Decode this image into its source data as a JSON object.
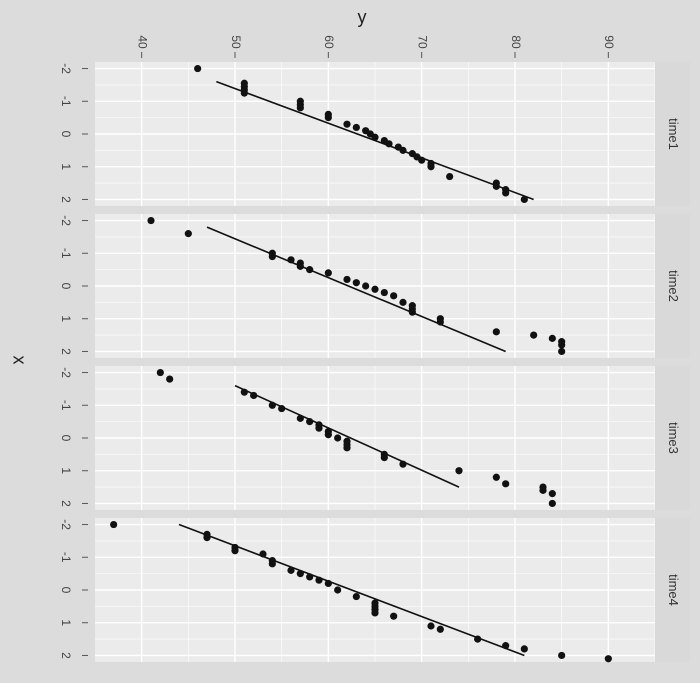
{
  "chart_data": {
    "type": "scatter",
    "orientation": "rotated-90-clockwise",
    "title": "",
    "xlabel": "x",
    "ylabel": "y",
    "x_ticks": [
      "-2",
      "-1",
      "0",
      "1",
      "2"
    ],
    "y_ticks": [
      "40",
      "50",
      "60",
      "70",
      "80",
      "90"
    ],
    "ylim": [
      35,
      95
    ],
    "xlim": [
      -2.2,
      2.2
    ],
    "grid": true,
    "panel_background": "#ebebeb",
    "strip_background": "#d9d9d9",
    "point_color": "#111111",
    "line_color": "#111111",
    "facets": [
      {
        "label": "time1",
        "fit": {
          "x": [
            -1.6,
            2.0
          ],
          "y": [
            48,
            82
          ]
        },
        "points": [
          {
            "x": -2.0,
            "y": 46
          },
          {
            "x": -1.55,
            "y": 51
          },
          {
            "x": -1.45,
            "y": 51
          },
          {
            "x": -1.35,
            "y": 51
          },
          {
            "x": -1.25,
            "y": 51
          },
          {
            "x": -1.0,
            "y": 57
          },
          {
            "x": -0.9,
            "y": 57
          },
          {
            "x": -0.8,
            "y": 57
          },
          {
            "x": -0.6,
            "y": 60
          },
          {
            "x": -0.5,
            "y": 60
          },
          {
            "x": -0.3,
            "y": 62
          },
          {
            "x": -0.2,
            "y": 63
          },
          {
            "x": -0.1,
            "y": 64
          },
          {
            "x": 0.0,
            "y": 64.5
          },
          {
            "x": 0.1,
            "y": 65
          },
          {
            "x": 0.2,
            "y": 66
          },
          {
            "x": 0.3,
            "y": 66.5
          },
          {
            "x": 0.4,
            "y": 67.5
          },
          {
            "x": 0.5,
            "y": 68
          },
          {
            "x": 0.6,
            "y": 69
          },
          {
            "x": 0.7,
            "y": 69.5
          },
          {
            "x": 0.8,
            "y": 70
          },
          {
            "x": 0.9,
            "y": 71
          },
          {
            "x": 1.0,
            "y": 71
          },
          {
            "x": 1.3,
            "y": 73
          },
          {
            "x": 1.5,
            "y": 78
          },
          {
            "x": 1.6,
            "y": 78
          },
          {
            "x": 1.7,
            "y": 79
          },
          {
            "x": 1.8,
            "y": 79
          },
          {
            "x": 2.0,
            "y": 81
          }
        ]
      },
      {
        "label": "time2",
        "fit": {
          "x": [
            -1.8,
            2.0
          ],
          "y": [
            47,
            79
          ]
        },
        "points": [
          {
            "x": -2.0,
            "y": 41
          },
          {
            "x": -1.6,
            "y": 45
          },
          {
            "x": -1.0,
            "y": 54
          },
          {
            "x": -0.9,
            "y": 54
          },
          {
            "x": -0.8,
            "y": 56
          },
          {
            "x": -0.7,
            "y": 57
          },
          {
            "x": -0.6,
            "y": 57
          },
          {
            "x": -0.5,
            "y": 58
          },
          {
            "x": -0.4,
            "y": 60
          },
          {
            "x": -0.2,
            "y": 62
          },
          {
            "x": -0.1,
            "y": 63
          },
          {
            "x": 0.0,
            "y": 64
          },
          {
            "x": 0.1,
            "y": 65
          },
          {
            "x": 0.2,
            "y": 66
          },
          {
            "x": 0.3,
            "y": 67
          },
          {
            "x": 0.5,
            "y": 68
          },
          {
            "x": 0.6,
            "y": 69
          },
          {
            "x": 0.7,
            "y": 69
          },
          {
            "x": 0.8,
            "y": 69
          },
          {
            "x": 1.0,
            "y": 72
          },
          {
            "x": 1.1,
            "y": 72
          },
          {
            "x": 1.4,
            "y": 78
          },
          {
            "x": 1.5,
            "y": 82
          },
          {
            "x": 1.6,
            "y": 84
          },
          {
            "x": 1.7,
            "y": 85
          },
          {
            "x": 1.8,
            "y": 85
          },
          {
            "x": 2.0,
            "y": 85
          }
        ]
      },
      {
        "label": "time3",
        "fit": {
          "x": [
            -1.6,
            1.5
          ],
          "y": [
            50,
            74
          ]
        },
        "points": [
          {
            "x": -2.0,
            "y": 42
          },
          {
            "x": -1.8,
            "y": 43
          },
          {
            "x": -1.4,
            "y": 51
          },
          {
            "x": -1.3,
            "y": 52
          },
          {
            "x": -1.0,
            "y": 54
          },
          {
            "x": -0.9,
            "y": 55
          },
          {
            "x": -0.6,
            "y": 57
          },
          {
            "x": -0.5,
            "y": 58
          },
          {
            "x": -0.4,
            "y": 59
          },
          {
            "x": -0.3,
            "y": 59
          },
          {
            "x": -0.2,
            "y": 60
          },
          {
            "x": -0.1,
            "y": 60
          },
          {
            "x": 0.0,
            "y": 61
          },
          {
            "x": 0.1,
            "y": 62
          },
          {
            "x": 0.2,
            "y": 62
          },
          {
            "x": 0.3,
            "y": 62
          },
          {
            "x": 0.5,
            "y": 66
          },
          {
            "x": 0.6,
            "y": 66
          },
          {
            "x": 0.8,
            "y": 68
          },
          {
            "x": 1.0,
            "y": 74
          },
          {
            "x": 1.2,
            "y": 78
          },
          {
            "x": 1.4,
            "y": 79
          },
          {
            "x": 1.5,
            "y": 83
          },
          {
            "x": 1.6,
            "y": 83
          },
          {
            "x": 1.7,
            "y": 84
          },
          {
            "x": 2.0,
            "y": 84
          }
        ]
      },
      {
        "label": "time4",
        "fit": {
          "x": [
            -2.0,
            2.0
          ],
          "y": [
            44,
            81
          ]
        },
        "points": [
          {
            "x": -2.0,
            "y": 37
          },
          {
            "x": -1.7,
            "y": 47
          },
          {
            "x": -1.6,
            "y": 47
          },
          {
            "x": -1.3,
            "y": 50
          },
          {
            "x": -1.2,
            "y": 50
          },
          {
            "x": -1.1,
            "y": 53
          },
          {
            "x": -0.9,
            "y": 54
          },
          {
            "x": -0.8,
            "y": 54
          },
          {
            "x": -0.6,
            "y": 56
          },
          {
            "x": -0.5,
            "y": 57
          },
          {
            "x": -0.4,
            "y": 58
          },
          {
            "x": -0.3,
            "y": 59
          },
          {
            "x": -0.2,
            "y": 60
          },
          {
            "x": 0.0,
            "y": 61
          },
          {
            "x": 0.2,
            "y": 63
          },
          {
            "x": 0.4,
            "y": 65
          },
          {
            "x": 0.5,
            "y": 65
          },
          {
            "x": 0.6,
            "y": 65
          },
          {
            "x": 0.7,
            "y": 65
          },
          {
            "x": 0.8,
            "y": 67
          },
          {
            "x": 1.1,
            "y": 71
          },
          {
            "x": 1.2,
            "y": 72
          },
          {
            "x": 1.5,
            "y": 76
          },
          {
            "x": 1.7,
            "y": 79
          },
          {
            "x": 1.8,
            "y": 81
          },
          {
            "x": 2.0,
            "y": 85
          },
          {
            "x": 2.1,
            "y": 90
          }
        ]
      }
    ]
  }
}
